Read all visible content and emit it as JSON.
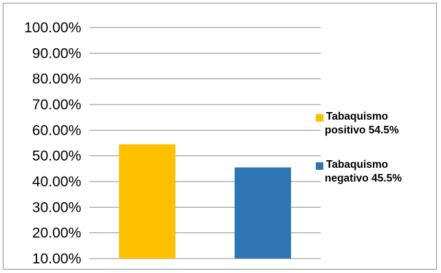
{
  "chart_data": {
    "type": "bar",
    "categories": [
      "Tabaquismo positivo 54.5%",
      "Tabaquismo negativo 45.5%"
    ],
    "values": [
      54.5,
      45.5
    ],
    "colors": [
      "#ffc000",
      "#2e75b6"
    ],
    "yaxis": {
      "min": 10,
      "max": 100,
      "step": 10,
      "tick_labels": [
        "10.00%",
        "20.00%",
        "30.00%",
        "40.00%",
        "50.00%",
        "60.00%",
        "70.00%",
        "80.00%",
        "90.00%",
        "100.00%"
      ]
    },
    "grid": true,
    "legend": {
      "position": "right",
      "items": [
        {
          "line1": "Tabaquismo",
          "line2": "positivo 54.5%",
          "color": "#ffc000"
        },
        {
          "line1": "Tabaquismo",
          "line2": "negativo 45.5%",
          "color": "#2e75b6"
        }
      ]
    },
    "title": "",
    "xlabel": "",
    "ylabel": ""
  }
}
